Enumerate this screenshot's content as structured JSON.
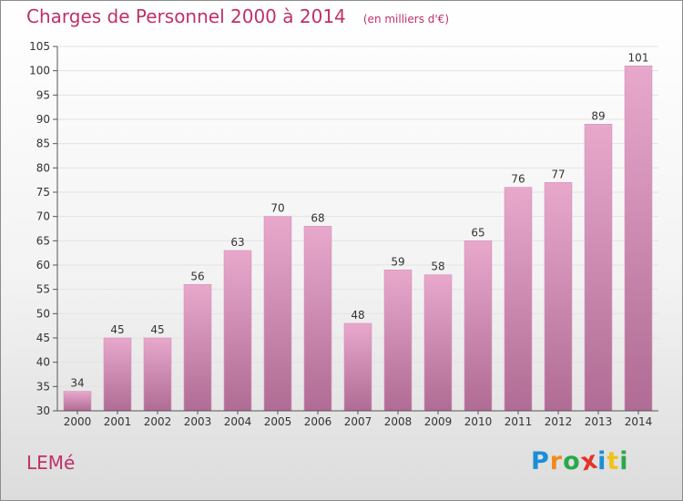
{
  "title": "Charges de Personnel 2000 à 2014",
  "subtitle": "(en milliers d'€)",
  "commune": "LEMé",
  "logo": {
    "text": "Proxiti",
    "letters": [
      {
        "ch": "P",
        "color": "#1a8fd6"
      },
      {
        "ch": "r",
        "color": "#f08a1c"
      },
      {
        "ch": "o",
        "color": "#2aa84a"
      },
      {
        "ch": "x",
        "color": "#e6332a"
      },
      {
        "ch": "i",
        "color": "#1a8fd6"
      },
      {
        "ch": "t",
        "color": "#f2c21a"
      },
      {
        "ch": "i",
        "color": "#2aa84a"
      }
    ]
  },
  "colors": {
    "accent": "#c0306a",
    "bar_top": "#e8a8cc",
    "bar_bottom": "#b06c94",
    "grid": "#e3e3e3",
    "axis": "#555555",
    "text": "#333333"
  },
  "chart_data": {
    "type": "bar",
    "categories": [
      "2000",
      "2001",
      "2002",
      "2003",
      "2004",
      "2005",
      "2006",
      "2007",
      "2008",
      "2009",
      "2010",
      "2011",
      "2012",
      "2013",
      "2014"
    ],
    "values": [
      34,
      45,
      45,
      56,
      63,
      70,
      68,
      48,
      59,
      58,
      65,
      76,
      77,
      89,
      101
    ],
    "ylim": [
      30,
      105
    ],
    "yticks": [
      30,
      35,
      40,
      45,
      50,
      55,
      60,
      65,
      70,
      75,
      80,
      85,
      90,
      95,
      100,
      105
    ],
    "grid": true,
    "data_labels": true
  }
}
